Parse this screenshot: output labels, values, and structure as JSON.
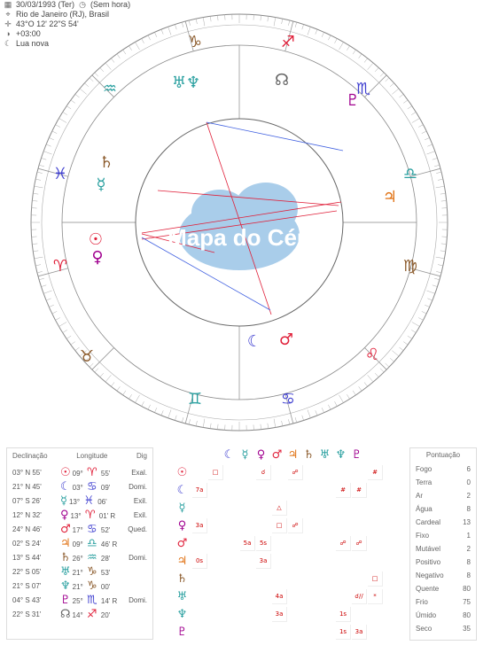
{
  "header": {
    "date_line": "30/03/1993 (Ter)",
    "time_line": "(Sem hora)",
    "place": "Rio de Janeiro (RJ), Brasil",
    "coords": "43°O 12' 22\"S 54'",
    "tz": "+03:00",
    "moon": "Lua nova"
  },
  "wheel": {
    "watermark": "Mapa do Céu",
    "signs": [
      {
        "glyph": "♑",
        "color": "#8b5a2b",
        "name": "capricorn-icon"
      },
      {
        "glyph": "♐",
        "color": "#e0203a",
        "name": "sagittarius-icon"
      },
      {
        "glyph": "♏",
        "color": "#4040d0",
        "name": "scorpio-icon"
      },
      {
        "glyph": "♎",
        "color": "#2aa0a0",
        "name": "libra-icon"
      },
      {
        "glyph": "♍",
        "color": "#8b5a2b",
        "name": "virgo-icon"
      },
      {
        "glyph": "♌",
        "color": "#e0203a",
        "name": "leo-icon"
      },
      {
        "glyph": "♋",
        "color": "#4040d0",
        "name": "cancer-icon"
      },
      {
        "glyph": "♊",
        "color": "#2aa0a0",
        "name": "gemini-icon"
      },
      {
        "glyph": "♉",
        "color": "#8b5a2b",
        "name": "taurus-icon"
      },
      {
        "glyph": "♈",
        "color": "#e0203a",
        "name": "aries-icon"
      },
      {
        "glyph": "♓",
        "color": "#4040d0",
        "name": "pisces-icon"
      },
      {
        "glyph": "♒",
        "color": "#2aa0a0",
        "name": "aquarius-icon"
      }
    ],
    "planets": [
      {
        "glyph": "♅♆",
        "color": "#2aa0a0",
        "name": "uranus-neptune-icon"
      },
      {
        "glyph": "☊",
        "color": "#666",
        "name": "node-icon"
      },
      {
        "glyph": "♇",
        "color": "#a0008f",
        "name": "pluto-icon"
      },
      {
        "glyph": "♄",
        "color": "#8b5a2b",
        "name": "saturn-icon"
      },
      {
        "glyph": "☿",
        "color": "#2aa0a0",
        "name": "mercury-icon"
      },
      {
        "glyph": "♃",
        "color": "#e07010",
        "name": "jupiter-icon"
      },
      {
        "glyph": "☉",
        "color": "#e0203a",
        "name": "sun-icon"
      },
      {
        "glyph": "♀",
        "color": "#a0008f",
        "name": "venus-icon"
      },
      {
        "glyph": "☾",
        "color": "#4040d0",
        "name": "moon-icon"
      },
      {
        "glyph": "♂",
        "color": "#e0203a",
        "name": "mars-icon"
      }
    ]
  },
  "declination": {
    "headers": [
      "Declinação",
      "Longitude",
      "Dig"
    ],
    "rows": [
      {
        "dec": "03° N 55'",
        "glyph": "☉",
        "color": "#e0203a",
        "deg": "09°",
        "sign": "♈",
        "scolor": "#e0203a",
        "min": "55'",
        "dig": "Exal."
      },
      {
        "dec": "21° N 45'",
        "glyph": "☾",
        "color": "#4040d0",
        "deg": "03°",
        "sign": "♋",
        "scolor": "#4040d0",
        "min": "09'",
        "dig": "Domi."
      },
      {
        "dec": "07° S 26'",
        "glyph": "☿",
        "color": "#2aa0a0",
        "deg": "13°",
        "sign": "♓",
        "scolor": "#4040d0",
        "min": "06'",
        "dig": "Exil."
      },
      {
        "dec": "12° N 32'",
        "glyph": "♀",
        "color": "#a0008f",
        "deg": "13°",
        "sign": "♈",
        "scolor": "#e0203a",
        "min": "01' R",
        "dig": "Exil."
      },
      {
        "dec": "24° N 46'",
        "glyph": "♂",
        "color": "#e0203a",
        "deg": "17°",
        "sign": "♋",
        "scolor": "#4040d0",
        "min": "52'",
        "dig": "Qued."
      },
      {
        "dec": "02° S 24'",
        "glyph": "♃",
        "color": "#e07010",
        "deg": "09°",
        "sign": "♎",
        "scolor": "#2aa0a0",
        "min": "46' R",
        "dig": ""
      },
      {
        "dec": "13° S 44'",
        "glyph": "♄",
        "color": "#8b5a2b",
        "deg": "26°",
        "sign": "♒",
        "scolor": "#2aa0a0",
        "min": "28'",
        "dig": "Domi."
      },
      {
        "dec": "22° S 05'",
        "glyph": "♅",
        "color": "#2aa0a0",
        "deg": "21°",
        "sign": "♑",
        "scolor": "#8b5a2b",
        "min": "53'",
        "dig": ""
      },
      {
        "dec": "21° S 07'",
        "glyph": "♆",
        "color": "#2aa0a0",
        "deg": "21°",
        "sign": "♑",
        "scolor": "#8b5a2b",
        "min": "00'",
        "dig": ""
      },
      {
        "dec": "04° S 43'",
        "glyph": "♇",
        "color": "#a0008f",
        "deg": "25°",
        "sign": "♏",
        "scolor": "#4040d0",
        "min": "14' R",
        "dig": "Domi."
      },
      {
        "dec": "22° S 31'",
        "glyph": "☊",
        "color": "#666",
        "deg": "14°",
        "sign": "♐",
        "scolor": "#e0203a",
        "min": "20'",
        "dig": ""
      }
    ]
  },
  "aspects": {
    "glyphs": [
      {
        "g": "☾",
        "c": "#4040d0"
      },
      {
        "g": "☿",
        "c": "#2aa0a0"
      },
      {
        "g": "♀",
        "c": "#a0008f"
      },
      {
        "g": "♂",
        "c": "#e0203a"
      },
      {
        "g": "♃",
        "c": "#e07010"
      },
      {
        "g": "♄",
        "c": "#8b5a2b"
      },
      {
        "g": "♅",
        "c": "#2aa0a0"
      },
      {
        "g": "♆",
        "c": "#2aa0a0"
      },
      {
        "g": "♇",
        "c": "#a0008f"
      }
    ],
    "row_glyphs": [
      {
        "g": "☉",
        "c": "#e0203a"
      },
      {
        "g": "☾",
        "c": "#4040d0"
      },
      {
        "g": "☿",
        "c": "#2aa0a0"
      },
      {
        "g": "♀",
        "c": "#a0008f"
      },
      {
        "g": "♂",
        "c": "#e0203a"
      },
      {
        "g": "♃",
        "c": "#e07010"
      },
      {
        "g": "♄",
        "c": "#8b5a2b"
      },
      {
        "g": "♅",
        "c": "#2aa0a0"
      },
      {
        "g": "♆",
        "c": "#2aa0a0"
      },
      {
        "g": "♇",
        "c": "#a0008f"
      }
    ],
    "cells": [
      {
        "r": 0,
        "c": 1,
        "t": "□"
      },
      {
        "r": 0,
        "c": 4,
        "t": "☌"
      },
      {
        "r": 0,
        "c": 6,
        "t": "☍"
      },
      {
        "r": 0,
        "c": 11,
        "t": "#"
      },
      {
        "r": 1,
        "c": 0,
        "t": "7a"
      },
      {
        "r": 1,
        "c": 9,
        "t": "#"
      },
      {
        "r": 1,
        "c": 10,
        "t": "#"
      },
      {
        "r": 2,
        "c": 5,
        "t": "△"
      },
      {
        "r": 3,
        "c": 0,
        "t": "3a"
      },
      {
        "r": 3,
        "c": 5,
        "t": "□"
      },
      {
        "r": 3,
        "c": 6,
        "t": "☍"
      },
      {
        "r": 4,
        "c": 3,
        "t": "5a"
      },
      {
        "r": 4,
        "c": 4,
        "t": "5s"
      },
      {
        "r": 4,
        "c": 9,
        "t": "☍"
      },
      {
        "r": 4,
        "c": 10,
        "t": "☍"
      },
      {
        "r": 5,
        "c": 0,
        "t": "0s"
      },
      {
        "r": 5,
        "c": 4,
        "t": "3a"
      },
      {
        "r": 6,
        "c": 11,
        "t": "□"
      },
      {
        "r": 7,
        "c": 5,
        "t": "4a"
      },
      {
        "r": 7,
        "c": 10,
        "t": "☌//"
      },
      {
        "r": 7,
        "c": 11,
        "t": "*"
      },
      {
        "r": 8,
        "c": 5,
        "t": "3a"
      },
      {
        "r": 8,
        "c": 9,
        "t": "1s"
      },
      {
        "r": 9,
        "c": 9,
        "t": "1s"
      },
      {
        "r": 9,
        "c": 10,
        "t": "3a"
      }
    ]
  },
  "score": {
    "title": "Pontuação",
    "rows": [
      {
        "k": "Fogo",
        "v": "6"
      },
      {
        "k": "Terra",
        "v": "0"
      },
      {
        "k": "Ar",
        "v": "2"
      },
      {
        "k": "Água",
        "v": "8"
      },
      {
        "k": "Cardeal",
        "v": "13"
      },
      {
        "k": "Fixo",
        "v": "1"
      },
      {
        "k": "Mutável",
        "v": "2"
      },
      {
        "k": "Positivo",
        "v": "8"
      },
      {
        "k": "Negativo",
        "v": "8"
      },
      {
        "k": "Quente",
        "v": "80"
      },
      {
        "k": "Frio",
        "v": "75"
      },
      {
        "k": "Úmido",
        "v": "80"
      },
      {
        "k": "Seco",
        "v": "35"
      }
    ]
  }
}
